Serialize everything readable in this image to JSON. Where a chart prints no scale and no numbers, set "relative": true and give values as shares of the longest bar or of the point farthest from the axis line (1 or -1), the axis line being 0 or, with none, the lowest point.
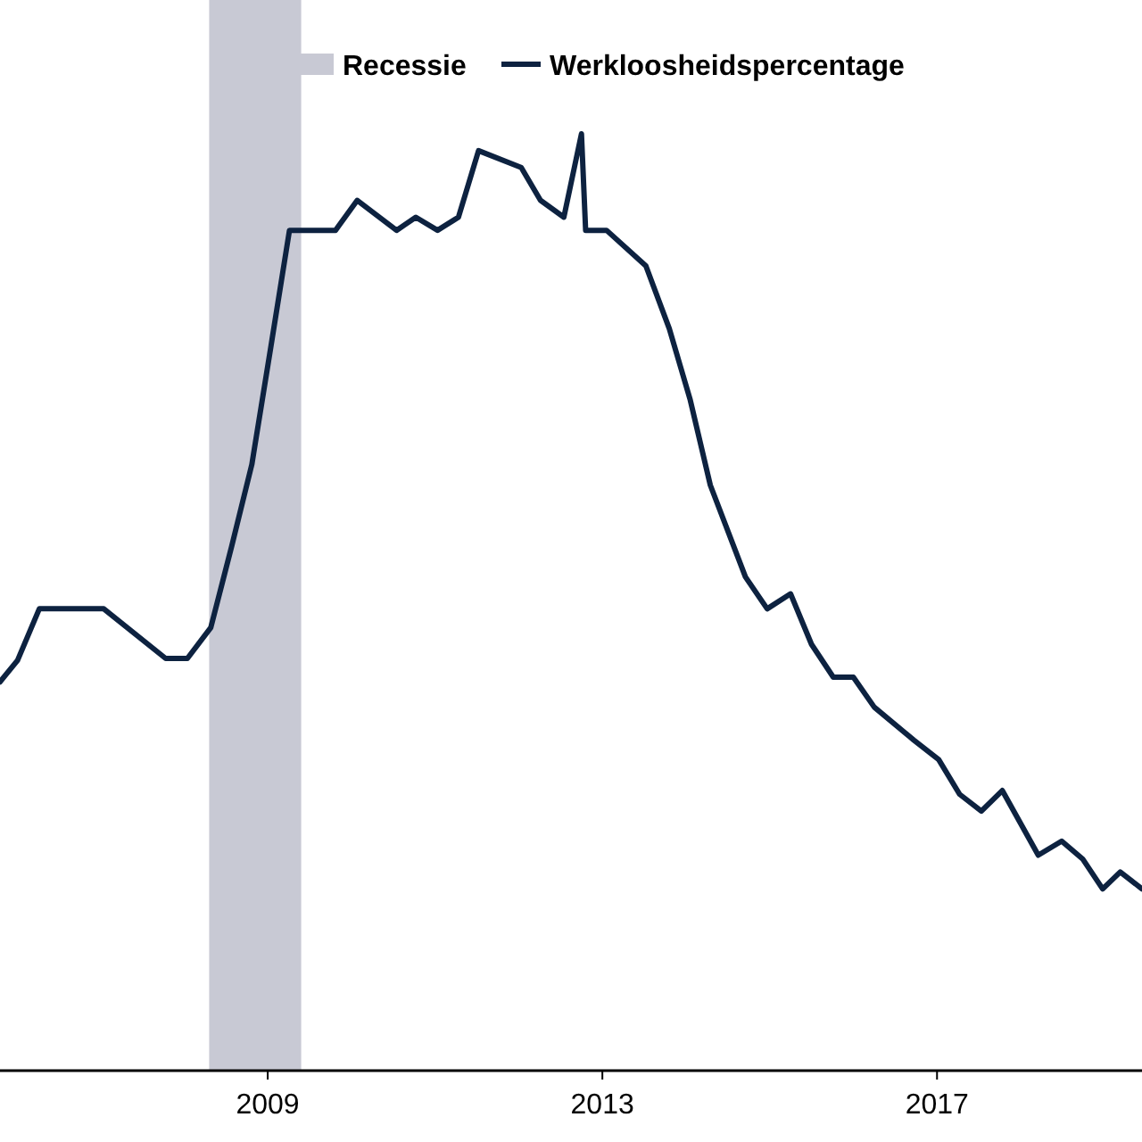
{
  "chart_data": {
    "type": "line",
    "relative": true,
    "xlim": [
      2005.8,
      2019.45
    ],
    "xticks": [
      2009,
      2013,
      2017
    ],
    "bands": [
      {
        "axis": "x",
        "from": 2008.3,
        "to": 2009.4,
        "label": "Recessie",
        "color": "#c8c9d4"
      }
    ],
    "series": [
      {
        "name": "Werkloosheidspercentage",
        "color": "#0d2240",
        "x": [
          2005.8,
          2006.01,
          2006.27,
          2006.55,
          2007.04,
          2007.78,
          2008.04,
          2008.32,
          2008.57,
          2008.81,
          2009.04,
          2009.26,
          2009.81,
          2010.07,
          2010.54,
          2010.77,
          2011.03,
          2011.28,
          2011.52,
          2012.03,
          2012.26,
          2012.54,
          2012.75,
          2012.8,
          2013.05,
          2013.52,
          2013.8,
          2014.05,
          2014.29,
          2014.71,
          2014.97,
          2015.25,
          2015.5,
          2015.76,
          2016.0,
          2016.25,
          2016.72,
          2017.02,
          2017.27,
          2017.53,
          2017.78,
          2018.21,
          2018.49,
          2018.74,
          2018.98,
          2019.19,
          2019.45
        ],
        "values": [
          0.415,
          0.438,
          0.493,
          0.493,
          0.493,
          0.44,
          0.44,
          0.473,
          0.56,
          0.647,
          0.774,
          0.897,
          0.897,
          0.929,
          0.897,
          0.911,
          0.897,
          0.911,
          0.982,
          0.964,
          0.929,
          0.911,
          1,
          0.897,
          0.897,
          0.859,
          0.792,
          0.716,
          0.625,
          0.527,
          0.493,
          0.509,
          0.455,
          0.42,
          0.42,
          0.388,
          0.353,
          0.332,
          0.295,
          0.277,
          0.299,
          0.23,
          0.245,
          0.226,
          0.194,
          0.212,
          0.194
        ]
      }
    ],
    "legend": "top"
  }
}
